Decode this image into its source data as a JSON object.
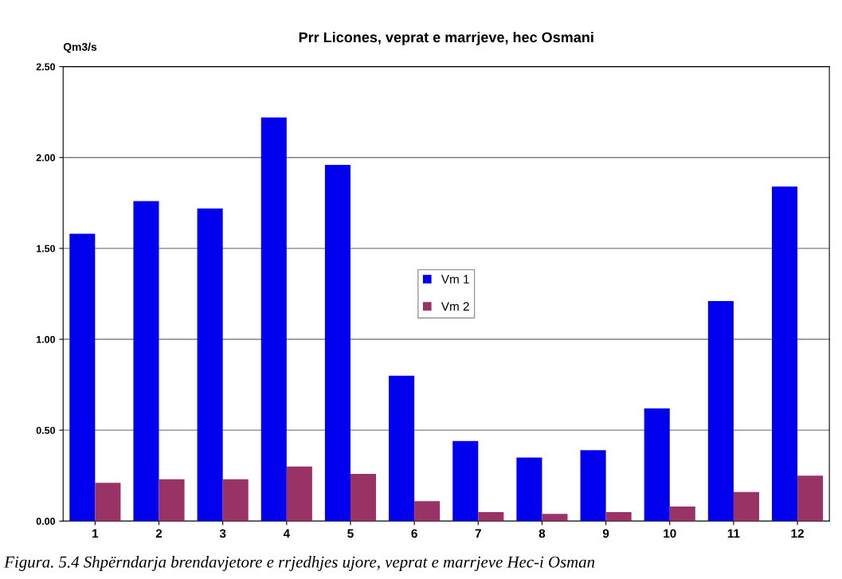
{
  "chart_data": {
    "type": "bar",
    "title": "Prr Licones, veprat e marrjeve, hec Osmani",
    "ylabel": "Qm3/s",
    "categories": [
      "1",
      "2",
      "3",
      "4",
      "5",
      "6",
      "7",
      "8",
      "9",
      "10",
      "11",
      "12"
    ],
    "series": [
      {
        "name": "Vm 1",
        "color": "#0000ee",
        "values": [
          1.58,
          1.76,
          1.72,
          2.22,
          1.96,
          0.8,
          0.44,
          0.35,
          0.39,
          0.62,
          1.21,
          1.84
        ]
      },
      {
        "name": "Vm 2",
        "color": "#993366",
        "values": [
          0.21,
          0.23,
          0.23,
          0.3,
          0.26,
          0.11,
          0.05,
          0.04,
          0.05,
          0.08,
          0.16,
          0.25
        ]
      }
    ],
    "ylim": [
      0,
      2.5
    ],
    "yticks": [
      {
        "value": 0,
        "label": "0.00"
      },
      {
        "value": 0.5,
        "label": "0.50"
      },
      {
        "value": 1,
        "label": "1.00"
      },
      {
        "value": 1.5,
        "label": "1.50"
      },
      {
        "value": 2,
        "label": "2.00"
      },
      {
        "value": 2.5,
        "label": "2.50"
      }
    ],
    "grid": "y",
    "legend": "center",
    "annotations": [
      "Figura. 5.4 Shpërndarja brendavjetore e rrjedhjes ujore, veprat e marrjeve Hec-i Osman"
    ]
  }
}
